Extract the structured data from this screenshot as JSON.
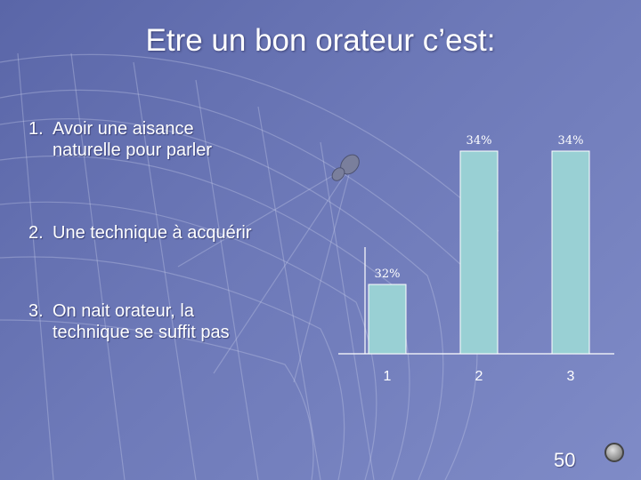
{
  "slide": {
    "title": "Etre un bon orateur c’est:",
    "page_number": "50"
  },
  "options": [
    {
      "number": "1.",
      "line1": "Avoir une aisance",
      "line2": "naturelle pour parler"
    },
    {
      "number": "2.",
      "line1": "Une technique à acquérir",
      "line2": ""
    },
    {
      "number": "3.",
      "line1": "On nait orateur, la",
      "line2": "technique se suffit pas"
    }
  ],
  "chart_data": {
    "type": "bar",
    "categories": [
      "1",
      "2",
      "3"
    ],
    "values": [
      32,
      34,
      34
    ],
    "value_labels": [
      "32%",
      "34%",
      "34%"
    ],
    "bar_color": "#99d0d4",
    "grid": false
  }
}
